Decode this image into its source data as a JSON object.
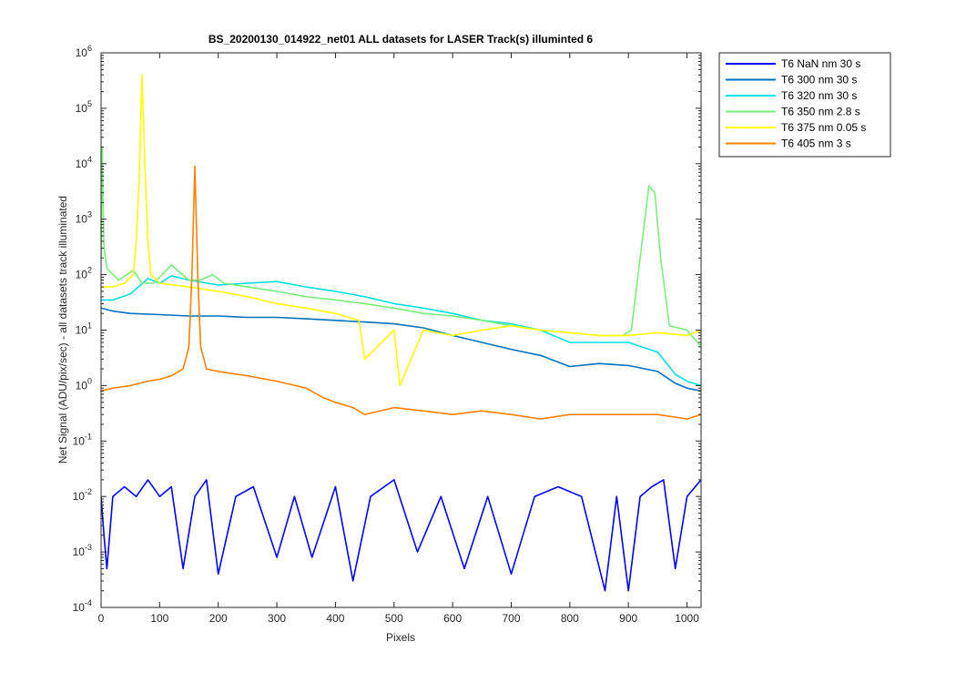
{
  "chart_data": {
    "type": "line",
    "title": "BS_20200130_014922_net01 ALL datasets for LASER  Track(s) illuminted 6",
    "xlabel": "Pixels",
    "ylabel": "Net Signal (ADU/pix/sec) - all datasets track illuminated",
    "xlim": [
      0,
      1024
    ],
    "ylim": [
      0.0001,
      1000000
    ],
    "yscale": "log",
    "grid": false,
    "legend_position": "outside-top-right",
    "x_ticks": [
      0,
      100,
      200,
      300,
      400,
      500,
      600,
      700,
      800,
      900,
      1000
    ],
    "x_tick_labels": [
      "0",
      "100",
      "200",
      "300",
      "400",
      "500",
      "600",
      "700",
      "800",
      "900",
      "1000"
    ],
    "y_ticks": [
      0.0001,
      0.001,
      0.01,
      0.1,
      1,
      10,
      100,
      1000,
      10000,
      100000,
      1000000
    ],
    "y_tick_labels": [
      {
        "base": "10",
        "exp": "-4"
      },
      {
        "base": "10",
        "exp": "-3"
      },
      {
        "base": "10",
        "exp": "-2"
      },
      {
        "base": "10",
        "exp": "-1"
      },
      {
        "base": "10",
        "exp": "0"
      },
      {
        "base": "10",
        "exp": "1"
      },
      {
        "base": "10",
        "exp": "2"
      },
      {
        "base": "10",
        "exp": "3"
      },
      {
        "base": "10",
        "exp": "4"
      },
      {
        "base": "10",
        "exp": "5"
      },
      {
        "base": "10",
        "exp": "6"
      }
    ],
    "series": [
      {
        "name": "T6 NaN nm 30 s",
        "color": "#0000ff",
        "x": [
          0,
          5,
          10,
          20,
          40,
          60,
          80,
          100,
          120,
          140,
          160,
          180,
          200,
          230,
          260,
          300,
          330,
          360,
          400,
          430,
          460,
          500,
          540,
          580,
          620,
          660,
          700,
          740,
          780,
          820,
          860,
          880,
          900,
          920,
          940,
          960,
          980,
          1000,
          1024
        ],
        "y": [
          0.01,
          0.002,
          0.0005,
          0.01,
          0.015,
          0.01,
          0.02,
          0.01,
          0.015,
          0.0005,
          0.01,
          0.02,
          0.0004,
          0.01,
          0.015,
          0.0008,
          0.01,
          0.0008,
          0.015,
          0.0003,
          0.01,
          0.02,
          0.001,
          0.01,
          0.0005,
          0.01,
          0.0004,
          0.01,
          0.015,
          0.01,
          0.0002,
          0.01,
          0.0002,
          0.01,
          0.015,
          0.02,
          0.0005,
          0.01,
          0.02
        ]
      },
      {
        "name": "T6 300 nm 30 s",
        "color": "#0072bd",
        "x": [
          0,
          20,
          50,
          100,
          150,
          200,
          250,
          300,
          350,
          400,
          450,
          500,
          550,
          600,
          650,
          700,
          750,
          800,
          850,
          900,
          950,
          980,
          1000,
          1024
        ],
        "y": [
          25,
          22,
          20,
          19,
          18,
          18,
          17,
          17,
          16,
          15,
          14,
          13,
          11,
          8,
          6,
          4.5,
          3.5,
          2.2,
          2.5,
          2.3,
          1.8,
          1.1,
          0.9,
          0.8
        ]
      },
      {
        "name": "T6 320 nm 30 s",
        "color": "#00e0e0",
        "x": [
          0,
          20,
          50,
          80,
          100,
          120,
          150,
          200,
          250,
          300,
          350,
          400,
          450,
          500,
          550,
          600,
          650,
          700,
          750,
          800,
          850,
          900,
          950,
          980,
          1000,
          1024
        ],
        "y": [
          35,
          35,
          45,
          85,
          70,
          95,
          80,
          65,
          70,
          75,
          60,
          50,
          40,
          30,
          25,
          20,
          15,
          13,
          10,
          6,
          6,
          6,
          4,
          1.6,
          1.2,
          1.0
        ]
      },
      {
        "name": "T6 350 nm 2.8 s",
        "color": "#7aee7a",
        "x": [
          0,
          2,
          5,
          10,
          30,
          55,
          70,
          90,
          120,
          150,
          170,
          190,
          210,
          250,
          300,
          350,
          400,
          450,
          500,
          550,
          600,
          650,
          700,
          750,
          800,
          850,
          890,
          905,
          920,
          935,
          945,
          955,
          970,
          1000,
          1024
        ],
        "y": [
          200,
          20000,
          300,
          130,
          80,
          120,
          70,
          70,
          150,
          80,
          80,
          100,
          70,
          60,
          50,
          40,
          35,
          30,
          25,
          20,
          18,
          15,
          12,
          10,
          9,
          8,
          8,
          10,
          200,
          4000,
          3000,
          200,
          12,
          10,
          5
        ]
      },
      {
        "name": "T6 375 nm 0.05 s",
        "color": "#ffff00",
        "x": [
          0,
          20,
          40,
          55,
          60,
          65,
          70,
          75,
          80,
          85,
          100,
          150,
          200,
          250,
          300,
          350,
          400,
          440,
          450,
          500,
          510,
          550,
          600,
          650,
          700,
          750,
          800,
          850,
          900,
          950,
          1000,
          1024
        ],
        "y": [
          60,
          60,
          70,
          100,
          400,
          5000,
          400000,
          8000,
          400,
          100,
          70,
          60,
          50,
          40,
          30,
          25,
          20,
          15,
          3,
          10,
          1,
          10,
          8,
          10,
          12,
          10,
          9,
          8,
          8,
          9,
          8,
          10
        ]
      },
      {
        "name": "T6 405 nm 3 s",
        "color": "#ff8000",
        "x": [
          0,
          20,
          50,
          80,
          100,
          120,
          140,
          150,
          155,
          160,
          165,
          170,
          180,
          200,
          250,
          300,
          350,
          380,
          400,
          430,
          450,
          500,
          550,
          600,
          650,
          700,
          750,
          800,
          850,
          900,
          950,
          1000,
          1024
        ],
        "y": [
          0.8,
          0.9,
          1.0,
          1.2,
          1.3,
          1.5,
          2.0,
          5,
          100,
          9000,
          100,
          5,
          2.0,
          1.8,
          1.5,
          1.2,
          0.9,
          0.6,
          0.5,
          0.4,
          0.3,
          0.4,
          0.35,
          0.3,
          0.35,
          0.3,
          0.25,
          0.3,
          0.3,
          0.3,
          0.3,
          0.25,
          0.3
        ]
      }
    ]
  }
}
